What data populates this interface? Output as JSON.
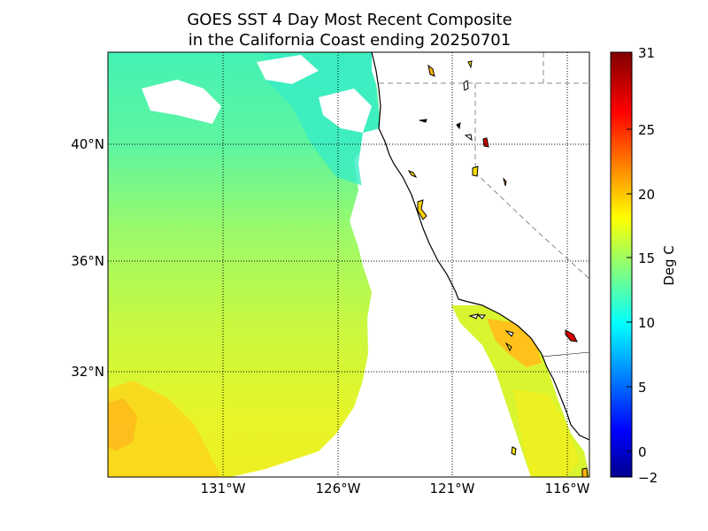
{
  "title": {
    "line1": "GOES SST 4 Day Most Recent Composite",
    "line2": "in the California Coast ending 20250701"
  },
  "map": {
    "lat_ticks": [
      "40°N",
      "36°N",
      "32°N"
    ],
    "lon_ticks": [
      "131°W",
      "126°W",
      "121°W",
      "116°W"
    ],
    "lon_range": [
      -136,
      -115
    ],
    "lat_range": [
      28.6,
      43.2
    ]
  },
  "colorbar": {
    "label": "Deg C",
    "ticks": [
      "31",
      "25",
      "20",
      "15",
      "10",
      "5",
      "0",
      "−2"
    ],
    "range": [
      -2,
      31
    ],
    "colormap": "jet"
  },
  "colors": {
    "land": "#ffffff",
    "sst_north": "#3cf0b0",
    "sst_central": "#8dfa6e",
    "sst_south": "#d8f530",
    "sst_warm": "#ffd81a",
    "sst_bight": "#ffb000",
    "lake_hot": "#d40000"
  }
}
